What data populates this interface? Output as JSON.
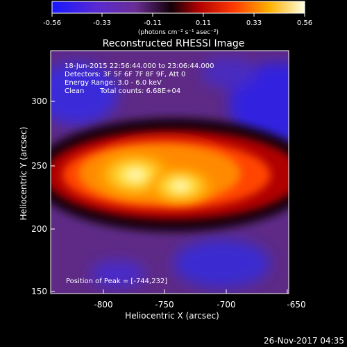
{
  "colorbar": {
    "tick_labels": [
      "-0.56",
      "-0.33",
      "-0.11",
      "0.11",
      "0.33",
      "0.56"
    ],
    "units": "(photons cm⁻² s⁻¹ asec⁻²)",
    "colormap": "blue-purple-black-red-orange-yellow-white"
  },
  "title": "Reconstructed RHESSI Image",
  "info": {
    "time_range": "18-Jun-2015 22:56:44.000 to 23:06:44.000",
    "detectors": "Detectors: 3F 5F 6F 7F 8F 9F, Att 0",
    "energy_range": "Energy Range: 3.0 - 6.0 keV",
    "method": "Clean",
    "total_counts": "Total counts: 6.68E+04"
  },
  "peak_label": "Position of Peak = [-744,232]",
  "x_axis": {
    "label": "Heliocentric X (arcsec)",
    "ticks": [
      "-800",
      "-750",
      "-700",
      "-650"
    ]
  },
  "y_axis": {
    "label": "Heliocentric Y (arcsec)",
    "ticks": [
      "300",
      "250",
      "200",
      "150"
    ]
  },
  "footer_timestamp": "26-Nov-2017 04:35"
}
